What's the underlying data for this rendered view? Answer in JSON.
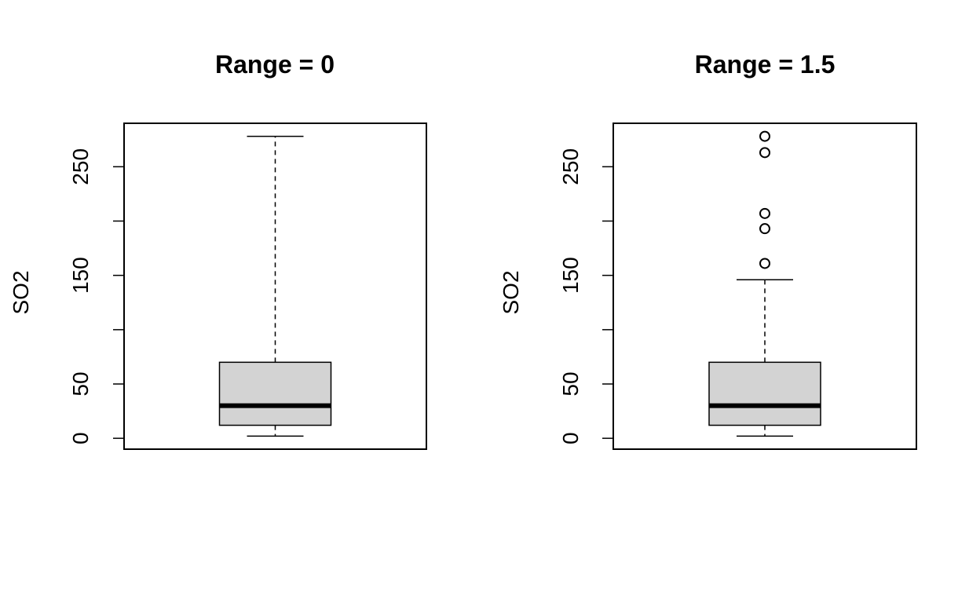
{
  "chart_data": [
    {
      "type": "boxplot",
      "title": "Range = 0",
      "ylabel": "SO2",
      "xlabel": "",
      "ylim": [
        -10,
        290
      ],
      "yticks": [
        0,
        50,
        100,
        150,
        200,
        250
      ],
      "yticklabels": [
        "0",
        "50",
        "",
        "150",
        "",
        "250"
      ],
      "box": {
        "min": 2,
        "q1": 12,
        "median": 30,
        "q3": 70,
        "max": 278,
        "whisker_low": 2,
        "whisker_high": 278
      },
      "outliers": [],
      "box_color": "#d3d3d3"
    },
    {
      "type": "boxplot",
      "title": "Range = 1.5",
      "ylabel": "SO2",
      "xlabel": "",
      "ylim": [
        -10,
        290
      ],
      "yticks": [
        0,
        50,
        100,
        150,
        200,
        250
      ],
      "yticklabels": [
        "0",
        "50",
        "",
        "150",
        "",
        "250"
      ],
      "box": {
        "min": 2,
        "q1": 12,
        "median": 30,
        "q3": 70,
        "max": 278,
        "whisker_low": 2,
        "whisker_high": 146
      },
      "outliers": [
        161,
        193,
        207,
        263,
        278
      ],
      "box_color": "#d3d3d3"
    }
  ]
}
